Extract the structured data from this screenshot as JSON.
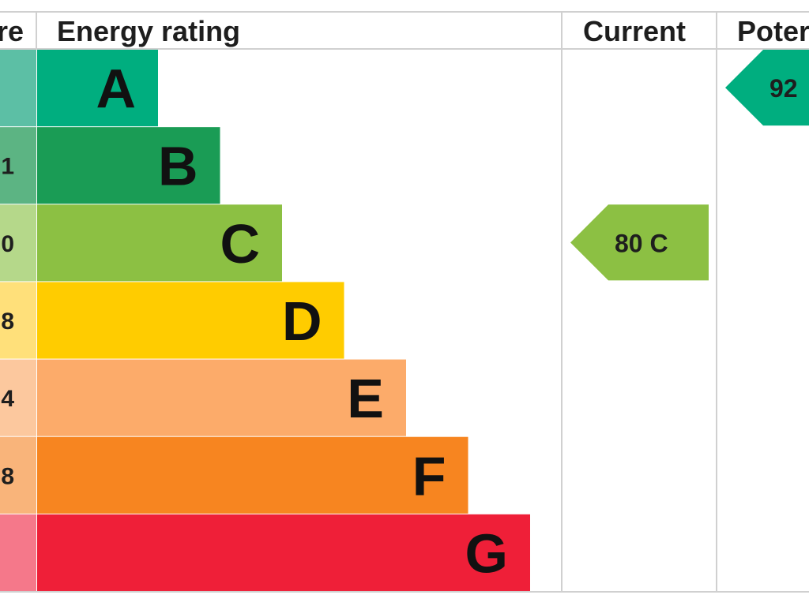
{
  "headers": {
    "score": "re",
    "rating": "Energy rating",
    "current": "Current",
    "potential": "Poter"
  },
  "chart_data": {
    "type": "bar",
    "categories": [
      "A",
      "B",
      "C",
      "D",
      "E",
      "F",
      "G"
    ],
    "score_labels": [
      "",
      "1",
      "0",
      "8",
      "4",
      "8",
      ""
    ],
    "colors": [
      "#00ae7f",
      "#1a9c55",
      "#8cc043",
      "#ffcc00",
      "#fcab6a",
      "#f78520",
      "#ef1f38"
    ],
    "light_colors": [
      "#5cbfa5",
      "#5cb483",
      "#b5d88a",
      "#ffe07a",
      "#fcc89e",
      "#f9b47a",
      "#f5788a"
    ],
    "values": [
      1,
      2,
      3,
      4,
      5,
      6,
      7
    ],
    "current": {
      "value": 80,
      "band": "C",
      "label": "80  C",
      "color": "#8cc043"
    },
    "potential": {
      "value": 92,
      "band": "A",
      "label": "92",
      "color": "#00ae7f"
    }
  }
}
